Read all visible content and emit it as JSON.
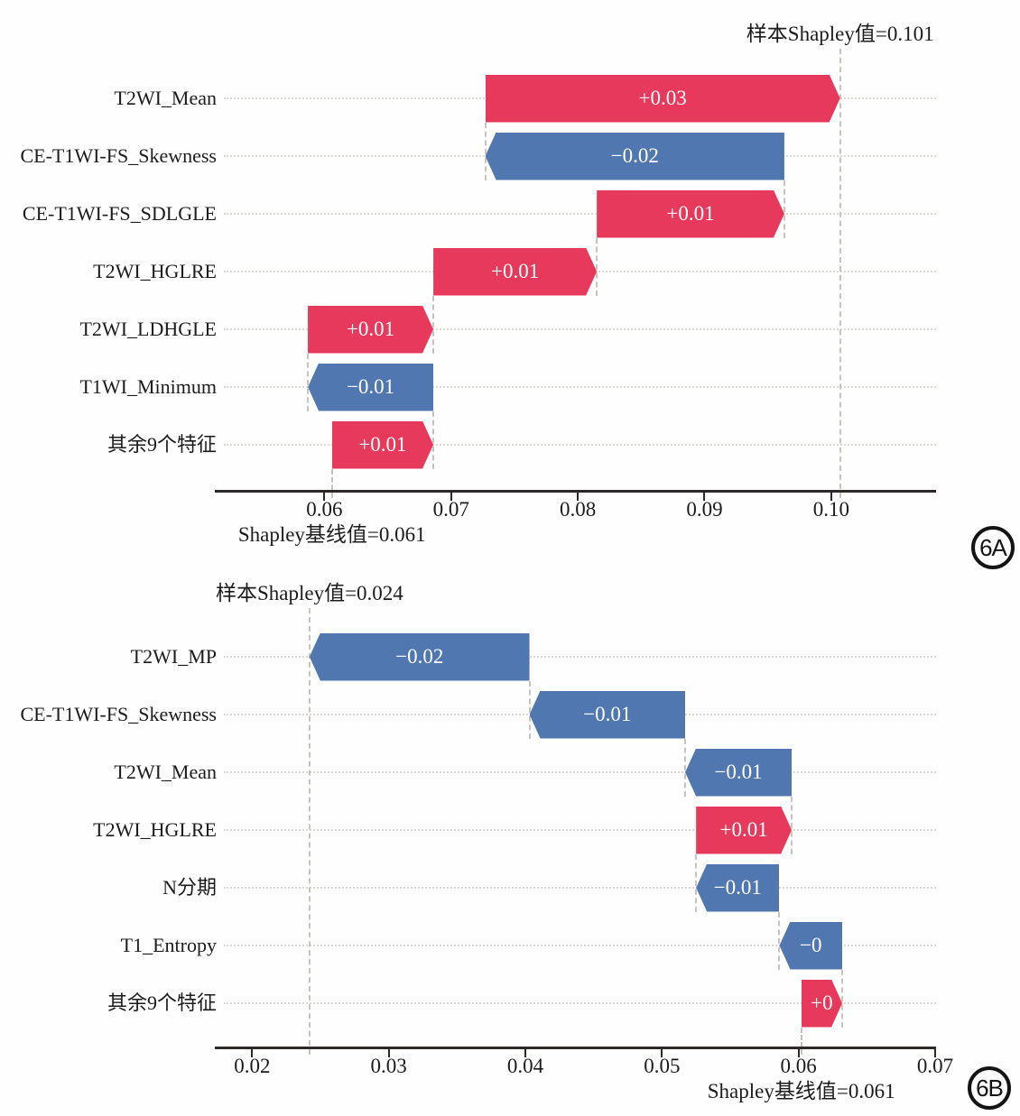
{
  "figure_labels": [
    "6A",
    "6B"
  ],
  "colors": {
    "positive": "#e6395c",
    "negative": "#5077af",
    "axis": "#2e2929",
    "grid": "#dcd8d2",
    "dash": "#c8c3bc"
  },
  "chart_data": [
    {
      "id": "6A",
      "type": "waterfall",
      "title": "样本Shapley值=0.101",
      "baseline_title": "Shapley基线值=0.061",
      "sample_value": 0.101,
      "baseline_value": 0.061,
      "xlim": [
        0.0515,
        0.1082
      ],
      "tick_values": [
        0.06,
        0.07,
        0.08,
        0.09,
        0.1
      ],
      "tick_labels": [
        "0.06",
        "0.07",
        "0.08",
        "0.09",
        "0.10"
      ],
      "grid": "dotted-horizontal",
      "features": [
        {
          "name": "T2WI_Mean",
          "label": "+0.03",
          "from": 0.0727,
          "to": 0.1007,
          "sign": "positive"
        },
        {
          "name": "CE-T1WI-FS_Skewness",
          "label": "−0.02",
          "from": 0.0963,
          "to": 0.0727,
          "sign": "negative"
        },
        {
          "name": "CE-T1WI-FS_SDLGLE",
          "label": "+0.01",
          "from": 0.0815,
          "to": 0.0963,
          "sign": "positive"
        },
        {
          "name": "T2WI_HGLRE",
          "label": "+0.01",
          "from": 0.0686,
          "to": 0.0815,
          "sign": "positive"
        },
        {
          "name": "T2WI_LDHGLE",
          "label": "+0.01",
          "from": 0.0587,
          "to": 0.0686,
          "sign": "positive"
        },
        {
          "name": "T1WI_Minimum",
          "label": "−0.01",
          "from": 0.0686,
          "to": 0.0587,
          "sign": "negative"
        },
        {
          "name": "其余9个特征",
          "label": "+0.01",
          "from": 0.0606,
          "to": 0.0686,
          "sign": "positive"
        }
      ]
    },
    {
      "id": "6B",
      "type": "waterfall",
      "title": "样本Shapley值=0.024",
      "baseline_title": "Shapley基线值=0.061",
      "sample_value": 0.024,
      "baseline_value": 0.061,
      "xlim": [
        0.0174,
        0.07
      ],
      "tick_values": [
        0.02,
        0.03,
        0.04,
        0.05,
        0.06,
        0.07
      ],
      "tick_labels": [
        "0.02",
        "0.03",
        "0.04",
        "0.05",
        "0.06",
        "0.07"
      ],
      "grid": "dotted-horizontal",
      "features": [
        {
          "name": "T2WI_MP",
          "label": "−0.02",
          "from": 0.0403,
          "to": 0.0242,
          "sign": "negative"
        },
        {
          "name": "CE-T1WI-FS_Skewness",
          "label": "−0.01",
          "from": 0.0517,
          "to": 0.0403,
          "sign": "negative"
        },
        {
          "name": "T2WI_Mean",
          "label": "−0.01",
          "from": 0.0595,
          "to": 0.0517,
          "sign": "negative"
        },
        {
          "name": "T2WI_HGLRE",
          "label": "+0.01",
          "from": 0.0525,
          "to": 0.0595,
          "sign": "positive"
        },
        {
          "name": "N分期",
          "label": "−0.01",
          "from": 0.0586,
          "to": 0.0525,
          "sign": "negative"
        },
        {
          "name": "T1_Entropy",
          "label": "−0",
          "from": 0.0632,
          "to": 0.0586,
          "sign": "negative"
        },
        {
          "name": "其余9个特征",
          "label": "+0",
          "from": 0.0602,
          "to": 0.0632,
          "sign": "positive"
        }
      ]
    }
  ]
}
